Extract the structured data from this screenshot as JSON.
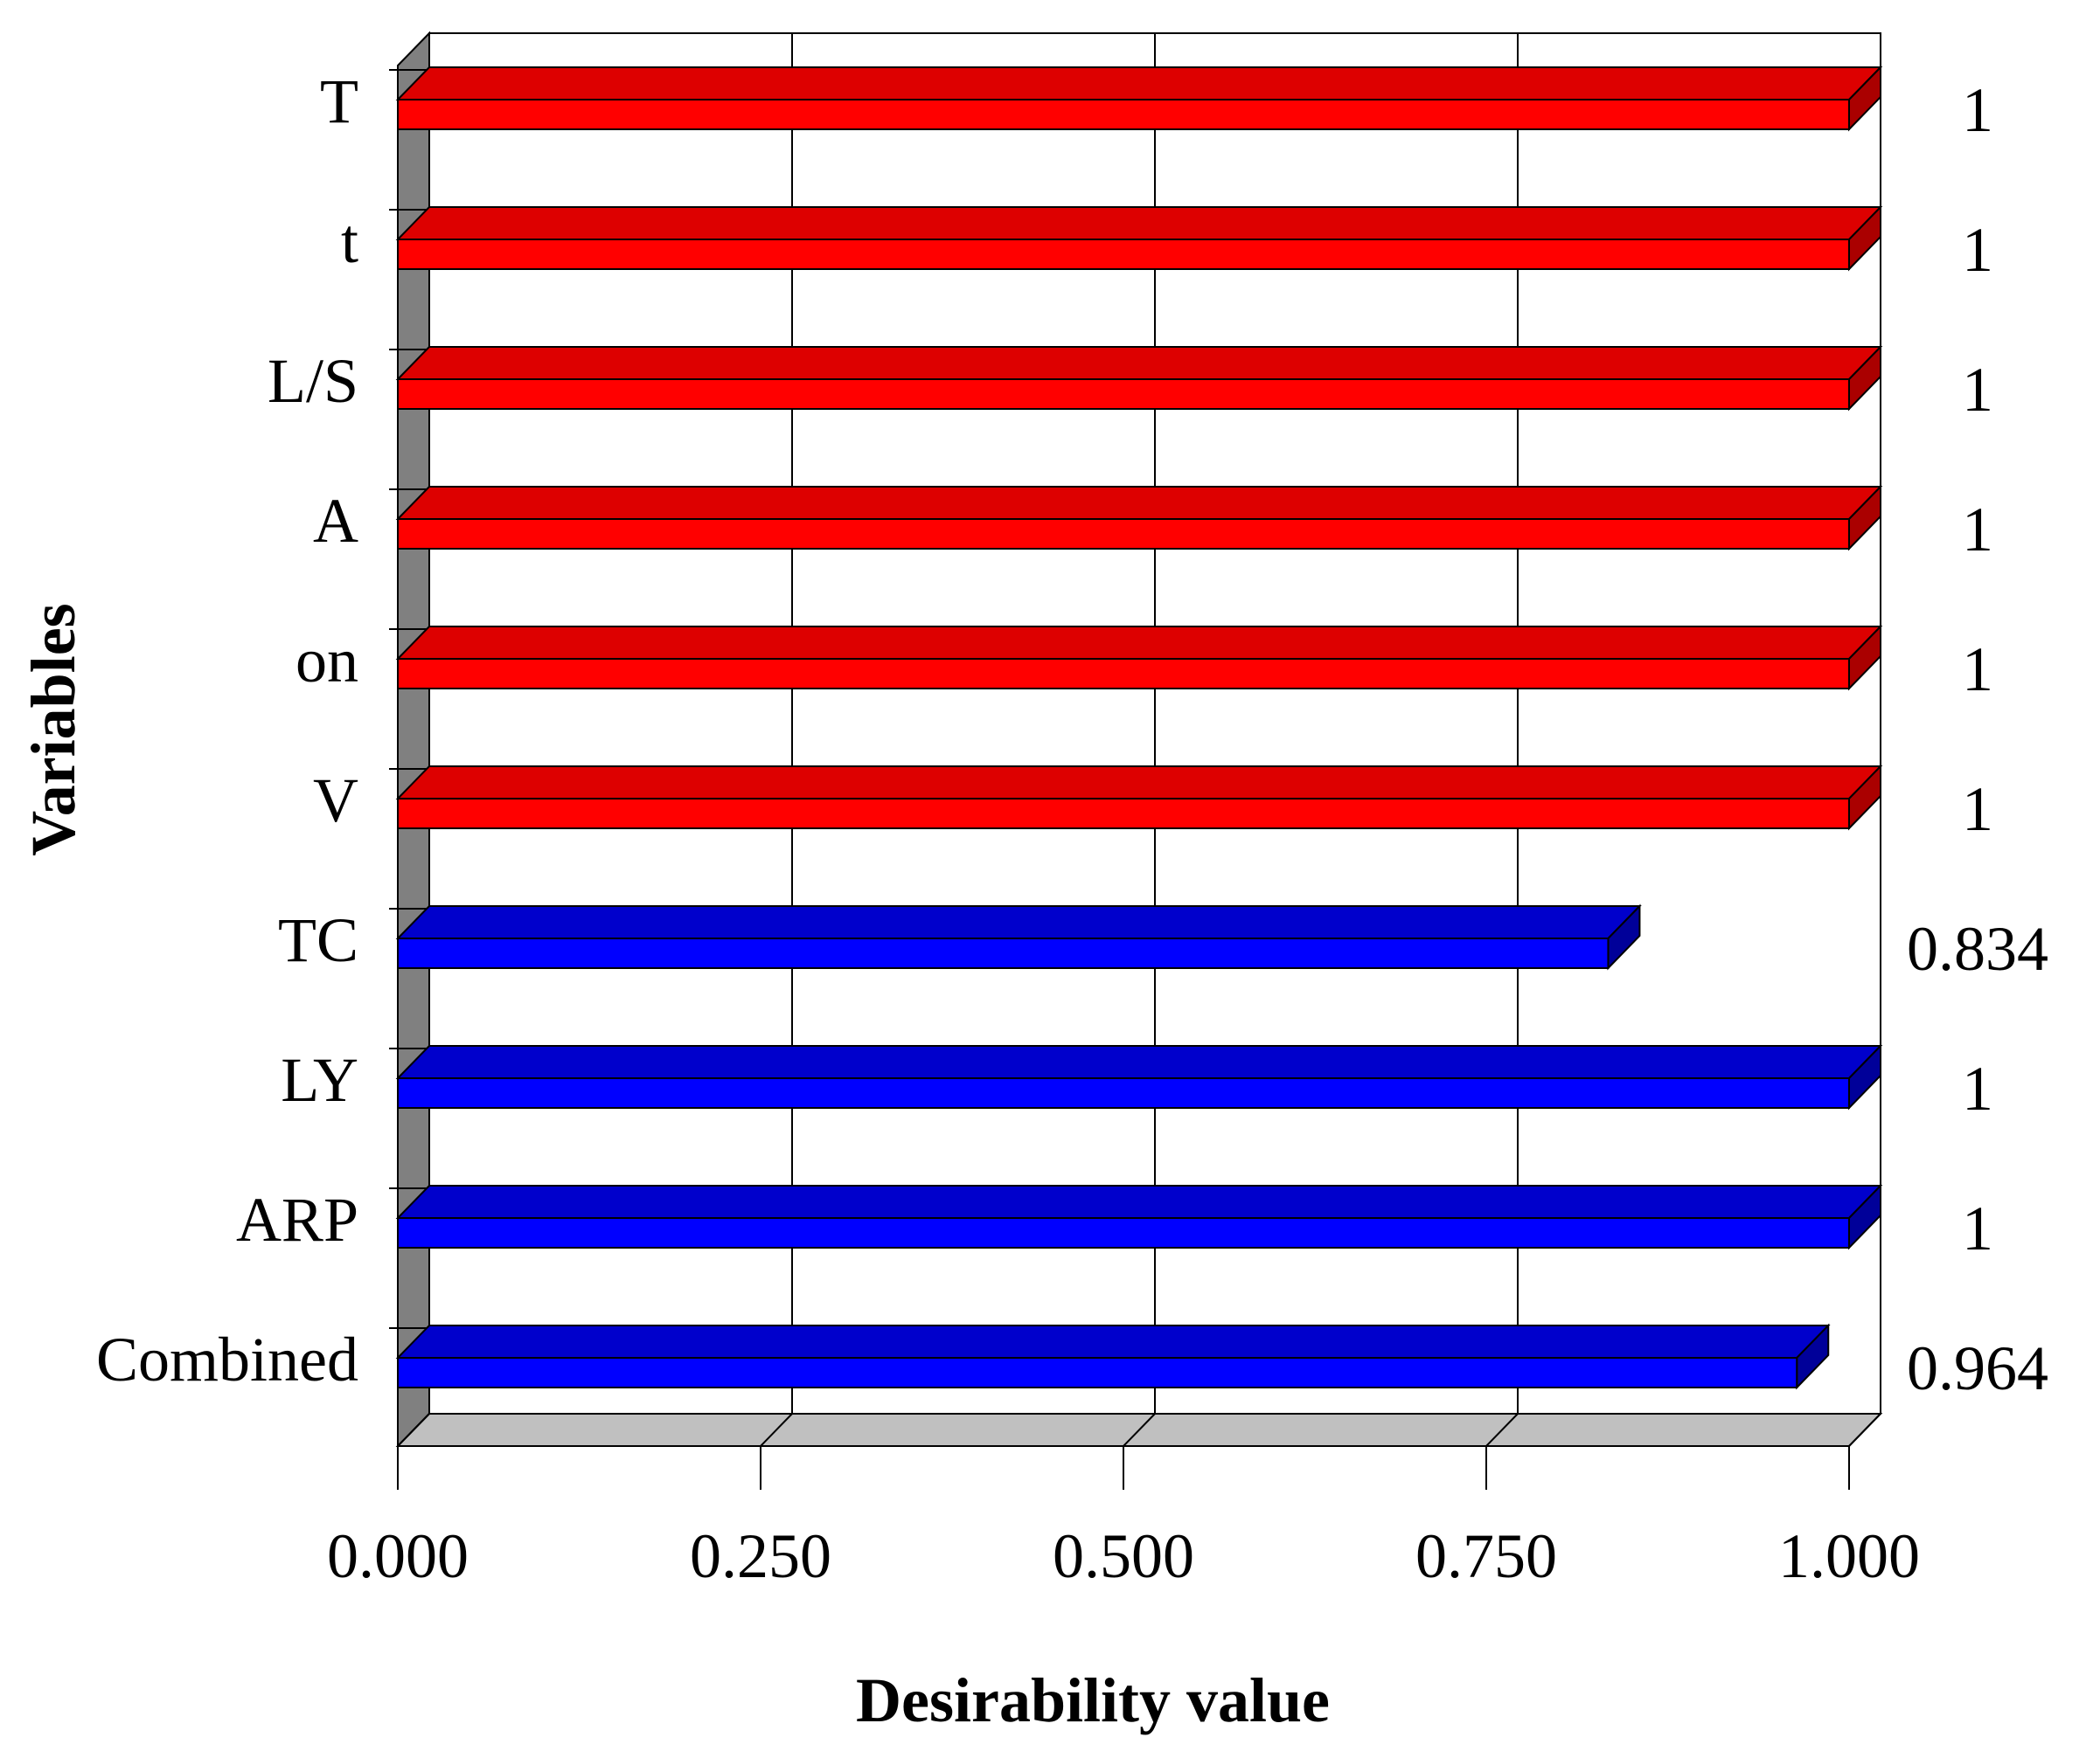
{
  "chart_data": {
    "type": "bar",
    "orientation": "horizontal",
    "style": "3d",
    "title": "",
    "xlabel": "Desirability value",
    "ylabel": "Variables",
    "xlim": [
      0,
      1
    ],
    "x_ticks": [
      "0.000",
      "0.250",
      "0.500",
      "0.750",
      "1.000"
    ],
    "grid": true,
    "categories": [
      "T",
      "t",
      "L/S",
      "A",
      "on",
      "V",
      "TC",
      "LY",
      "ARP",
      "Combined"
    ],
    "values": [
      1,
      1,
      1,
      1,
      1,
      1,
      0.834,
      1,
      1,
      0.964
    ],
    "value_labels": [
      "1",
      "1",
      "1",
      "1",
      "1",
      "1",
      "0.834",
      "1",
      "1",
      "0.964"
    ],
    "groups": [
      "factor",
      "factor",
      "factor",
      "factor",
      "factor",
      "factor",
      "response",
      "response",
      "response",
      "response"
    ],
    "colors": {
      "factor": {
        "front": "#ff0000",
        "top": "#dd0000",
        "side": "#aa0000"
      },
      "response": {
        "front": "#0000ff",
        "top": "#0000cc",
        "side": "#000099"
      },
      "wall": "#808080",
      "floor": "#c0c0c0"
    }
  }
}
